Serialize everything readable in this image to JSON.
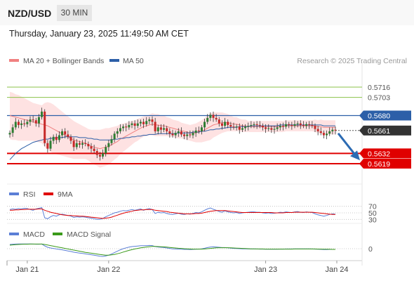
{
  "header": {
    "pair": "NZD/USD",
    "timeframe": "30 MIN",
    "timestamp": "Thursday, January 23, 2025 11:49:50 AM CET"
  },
  "colors": {
    "ma20": "#f08080",
    "bands": "#fdd8d8",
    "ma50": "#2c5fa8",
    "resistance_green": "#8bc34a",
    "pivot_blue": "#2c5fa8",
    "support_red": "#e00000",
    "current_price": "#333333",
    "rsi": "#5b7fd6",
    "rsi_9ma": "#e00000",
    "macd": "#5b7fd6",
    "macd_signal": "#3a9a1a",
    "arrow": "#2c6bb3"
  },
  "chart_data": [
    {
      "type": "candlestick",
      "panel": "price",
      "legend": [
        "MA 20 + Bollinger Bands",
        "MA 50"
      ],
      "source": "Research © 2025 Trading Central",
      "x_ticks": [
        "Jan 21",
        "Jan 22",
        "Jan 23",
        "Jan 24"
      ],
      "ylim": [
        0.5594,
        0.5741
      ],
      "current_price": 0.5661,
      "levels": [
        {
          "label": "0.5716",
          "value": 0.5716,
          "kind": "resistance"
        },
        {
          "label": "0.5703",
          "value": 0.5703,
          "kind": "resistance"
        },
        {
          "label": "0.5680",
          "value": 0.568,
          "kind": "pivot"
        },
        {
          "label": "0.5661",
          "value": 0.5661,
          "kind": "current"
        },
        {
          "label": "0.5632",
          "value": 0.5632,
          "kind": "support"
        },
        {
          "label": "0.5619",
          "value": 0.5619,
          "kind": "support"
        }
      ],
      "close": [
        0.5658,
        0.5665,
        0.5672,
        0.5668,
        0.567,
        0.5669,
        0.5672,
        0.5675,
        0.5674,
        0.567,
        0.5678,
        0.5685,
        0.5645,
        0.5638,
        0.5648,
        0.5653,
        0.5649,
        0.5655,
        0.566,
        0.5656,
        0.5653,
        0.5648,
        0.564,
        0.5645,
        0.5643,
        0.5645,
        0.5644,
        0.5641,
        0.5638,
        0.5635,
        0.563,
        0.5628,
        0.5632,
        0.564,
        0.5645,
        0.565,
        0.5657,
        0.566,
        0.5664,
        0.5666,
        0.5665,
        0.5668,
        0.567,
        0.5667,
        0.567,
        0.5672,
        0.5669,
        0.5673,
        0.5675,
        0.5672,
        0.566,
        0.5665,
        0.5662,
        0.5664,
        0.566,
        0.5657,
        0.5655,
        0.5658,
        0.566,
        0.5656,
        0.5654,
        0.5656,
        0.5655,
        0.5658,
        0.5661,
        0.566,
        0.5665,
        0.5672,
        0.5677,
        0.5681,
        0.5677,
        0.5675,
        0.567,
        0.5667,
        0.5672,
        0.5668,
        0.5666,
        0.5665,
        0.5666,
        0.5662,
        0.5664,
        0.5666,
        0.5667,
        0.5668,
        0.5669,
        0.5668,
        0.5667,
        0.5665,
        0.5663,
        0.5664,
        0.5662,
        0.5663,
        0.5665,
        0.5667,
        0.5666,
        0.5669,
        0.5668,
        0.5667,
        0.5669,
        0.567,
        0.5668,
        0.5667,
        0.5669,
        0.5668,
        0.5667,
        0.5663,
        0.566,
        0.5658,
        0.5655,
        0.5657,
        0.566,
        0.5662,
        0.5661
      ],
      "ma20": [
        0.568,
        0.5679,
        0.5678,
        0.5677,
        0.5676,
        0.5675,
        0.5674,
        0.5673,
        0.5672,
        0.5671,
        0.567,
        0.5669,
        0.5668,
        0.5667,
        0.5665,
        0.5663,
        0.5661,
        0.5659,
        0.5657,
        0.5655,
        0.5653,
        0.5651,
        0.5649,
        0.5648,
        0.5647,
        0.5646,
        0.5645,
        0.5643,
        0.5641,
        0.564,
        0.5639,
        0.5638,
        0.5639,
        0.564,
        0.5641,
        0.5643,
        0.5645,
        0.5647,
        0.565,
        0.5652,
        0.5654,
        0.5656,
        0.5658,
        0.566,
        0.5662,
        0.5664,
        0.5666,
        0.5667,
        0.5668,
        0.5669,
        0.5668,
        0.5668,
        0.5667,
        0.5667,
        0.5666,
        0.5665,
        0.5664,
        0.5663,
        0.5662,
        0.5661,
        0.566,
        0.5659,
        0.5658,
        0.5658,
        0.5658,
        0.5659,
        0.566,
        0.5662,
        0.5664,
        0.5666,
        0.5668,
        0.5669,
        0.567,
        0.5671,
        0.5671,
        0.5671,
        0.567,
        0.5669,
        0.5669,
        0.5668,
        0.5667,
        0.5667,
        0.5666,
        0.5666,
        0.5666,
        0.5666,
        0.5666,
        0.5666,
        0.5666,
        0.5666,
        0.5666,
        0.5666,
        0.5666,
        0.5666,
        0.5666,
        0.5667,
        0.5667,
        0.5667,
        0.5667,
        0.5667,
        0.5667,
        0.5667,
        0.5667,
        0.5667,
        0.5667,
        0.5667,
        0.5666,
        0.5666,
        0.5665,
        0.5665,
        0.5665,
        0.5665,
        0.5665
      ],
      "ma50": [
        0.5624,
        0.5628,
        0.5632,
        0.5635,
        0.5638,
        0.564,
        0.5642,
        0.5644,
        0.5646,
        0.5647,
        0.5648,
        0.5649,
        0.565,
        0.565,
        0.5651,
        0.5651,
        0.5652,
        0.5652,
        0.5652,
        0.5653,
        0.5653,
        0.5653,
        0.5653,
        0.5653,
        0.5652,
        0.5652,
        0.5652,
        0.5651,
        0.5651,
        0.565,
        0.565,
        0.5649,
        0.5649,
        0.5649,
        0.5649,
        0.5649,
        0.565,
        0.565,
        0.5651,
        0.5651,
        0.5652,
        0.5652,
        0.5653,
        0.5653,
        0.5654,
        0.5654,
        0.5655,
        0.5655,
        0.5656,
        0.5656,
        0.5656,
        0.5657,
        0.5657,
        0.5657,
        0.5657,
        0.5657,
        0.5657,
        0.5657,
        0.5658,
        0.5658,
        0.5658,
        0.5658,
        0.5658,
        0.5659,
        0.5659,
        0.5659,
        0.566,
        0.566,
        0.5661,
        0.5662,
        0.5662,
        0.5663,
        0.5663,
        0.5664,
        0.5664,
        0.5665,
        0.5665,
        0.5665,
        0.5665,
        0.5666,
        0.5666,
        0.5666,
        0.5666,
        0.5667,
        0.5667,
        0.5667,
        0.5667,
        0.5667,
        0.5667,
        0.5667,
        0.5667,
        0.5667,
        0.5667,
        0.5668,
        0.5668,
        0.5668,
        0.5668,
        0.5668,
        0.5668,
        0.5668,
        0.5668,
        0.5668,
        0.5668,
        0.5668,
        0.5668,
        0.5668,
        0.5668,
        0.5668,
        0.5667,
        0.5667,
        0.5667,
        0.5667,
        0.5667
      ],
      "band_width": [
        0.003,
        0.003,
        0.0029,
        0.0029,
        0.0028,
        0.0027,
        0.0026,
        0.0025,
        0.0024,
        0.0024,
        0.0024,
        0.0024,
        0.0028,
        0.003,
        0.0031,
        0.0031,
        0.003,
        0.0029,
        0.0028,
        0.0027,
        0.0026,
        0.0025,
        0.0024,
        0.0023,
        0.0022,
        0.0021,
        0.002,
        0.002,
        0.0021,
        0.0022,
        0.0023,
        0.0024,
        0.0024,
        0.0024,
        0.0023,
        0.0022,
        0.0021,
        0.002,
        0.0019,
        0.0018,
        0.0017,
        0.0016,
        0.0015,
        0.0014,
        0.0014,
        0.0013,
        0.0013,
        0.0013,
        0.0013,
        0.0014,
        0.0014,
        0.0014,
        0.0013,
        0.0013,
        0.0012,
        0.0012,
        0.0011,
        0.0011,
        0.0011,
        0.001,
        0.001,
        0.001,
        0.001,
        0.0011,
        0.0012,
        0.0013,
        0.0014,
        0.0015,
        0.0016,
        0.0017,
        0.0016,
        0.0015,
        0.0014,
        0.0013,
        0.0012,
        0.0011,
        0.001,
        0.0009,
        0.0009,
        0.0008,
        0.0008,
        0.0008,
        0.0007,
        0.0007,
        0.0007,
        0.0007,
        0.0007,
        0.0007,
        0.0007,
        0.0007,
        0.0007,
        0.0007,
        0.0007,
        0.0007,
        0.0007,
        0.0007,
        0.0007,
        0.0007,
        0.0007,
        0.0007,
        0.0007,
        0.0007,
        0.0007,
        0.0007,
        0.0007,
        0.0008,
        0.0008,
        0.0009,
        0.0009,
        0.0009,
        0.0009,
        0.0009,
        0.0009
      ]
    },
    {
      "type": "line",
      "panel": "rsi",
      "legend": [
        "RSI",
        "9MA"
      ],
      "y_ticks": [
        70,
        50,
        30
      ],
      "ylim": [
        20,
        80
      ],
      "rsi": [
        60,
        62,
        61,
        63,
        62,
        64,
        63,
        60,
        58,
        62,
        64,
        66,
        35,
        32,
        38,
        42,
        40,
        44,
        46,
        44,
        42,
        40,
        36,
        38,
        37,
        38,
        37,
        35,
        34,
        32,
        30,
        30,
        33,
        38,
        42,
        46,
        50,
        52,
        55,
        57,
        56,
        58,
        60,
        58,
        60,
        62,
        58,
        61,
        63,
        60,
        48,
        52,
        50,
        51,
        48,
        46,
        45,
        47,
        49,
        46,
        45,
        47,
        46,
        48,
        51,
        50,
        53,
        58,
        62,
        65,
        61,
        58,
        54,
        52,
        56,
        53,
        51,
        50,
        51,
        48,
        50,
        51,
        52,
        53,
        53,
        52,
        52,
        50,
        49,
        50,
        48,
        49,
        50,
        52,
        51,
        53,
        52,
        51,
        53,
        54,
        52,
        51,
        53,
        52,
        51,
        47,
        44,
        42,
        40,
        42,
        45,
        47,
        46
      ],
      "ma9": [
        58,
        58,
        59,
        59,
        60,
        60,
        61,
        61,
        61,
        61,
        62,
        62,
        58,
        55,
        52,
        50,
        48,
        46,
        44,
        43,
        42,
        42,
        41,
        41,
        40,
        40,
        39,
        38,
        37,
        36,
        35,
        34,
        33,
        34,
        35,
        37,
        40,
        43,
        46,
        49,
        51,
        53,
        55,
        57,
        58,
        59,
        59,
        60,
        60,
        60,
        58,
        57,
        56,
        55,
        54,
        52,
        51,
        50,
        49,
        48,
        47,
        47,
        47,
        47,
        48,
        48,
        49,
        51,
        53,
        55,
        56,
        57,
        57,
        57,
        57,
        56,
        55,
        54,
        53,
        52,
        51,
        51,
        51,
        51,
        51,
        51,
        51,
        51,
        51,
        51,
        51,
        50,
        50,
        50,
        50,
        51,
        51,
        51,
        52,
        52,
        52,
        52,
        52,
        52,
        52,
        51,
        50,
        49,
        48,
        47,
        46,
        45,
        45
      ]
    },
    {
      "type": "line",
      "panel": "macd",
      "legend": [
        "MACD",
        "MACD Signal"
      ],
      "y_ticks": [
        0
      ],
      "ylim": [
        -0.0008,
        0.0006
      ],
      "macd": [
        0.0003,
        0.00032,
        0.00033,
        0.00034,
        0.00034,
        0.00034,
        0.00034,
        0.00034,
        0.00033,
        0.00032,
        0.00032,
        0.00033,
        0.0002,
        0.0001,
        5e-05,
        2e-05,
        -2e-05,
        -5e-05,
        -8e-05,
        -0.00012,
        -0.00016,
        -0.0002,
        -0.00025,
        -0.00028,
        -0.00031,
        -0.00034,
        -0.00037,
        -0.0004,
        -0.00043,
        -0.00046,
        -0.0005,
        -0.00054,
        -0.00055,
        -0.00052,
        -0.00046,
        -0.00038,
        -0.00028,
        -0.00018,
        -8e-05,
        0.0,
        6e-05,
        0.00011,
        0.00015,
        0.00017,
        0.00019,
        0.00021,
        0.00021,
        0.00022,
        0.00023,
        0.00022,
        0.00015,
        0.00012,
        0.0001,
        8e-05,
        5e-05,
        2e-05,
        -1e-05,
        -2e-05,
        -3e-05,
        -4e-05,
        -5e-05,
        -5e-05,
        -6e-05,
        -5e-05,
        -4e-05,
        -3e-05,
        -1e-05,
        3e-05,
        8e-05,
        0.00012,
        0.00013,
        0.00012,
        0.0001,
        8e-05,
        8e-05,
        6e-05,
        4e-05,
        2e-05,
        1e-05,
        0.0,
        -1e-05,
        -1e-05,
        -2e-05,
        -2e-05,
        -2e-05,
        -2e-05,
        -3e-05,
        -3e-05,
        -4e-05,
        -4e-05,
        -4e-05,
        -4e-05,
        -4e-05,
        -3e-05,
        -3e-05,
        -2e-05,
        -2e-05,
        -2e-05,
        -1e-05,
        -1e-05,
        -1e-05,
        -1e-05,
        -1e-05,
        -1e-05,
        -2e-05,
        -3e-05,
        -4e-05,
        -5e-05,
        -6e-05,
        -6e-05,
        -5e-05,
        -5e-05,
        -5e-05
      ],
      "signal": [
        0.00025,
        0.00027,
        0.00029,
        0.0003,
        0.00031,
        0.00032,
        0.00032,
        0.00033,
        0.00033,
        0.00033,
        0.00033,
        0.00033,
        0.0003,
        0.00026,
        0.00022,
        0.00018,
        0.00014,
        0.0001,
        6e-05,
        2e-05,
        -2e-05,
        -6e-05,
        -0.0001,
        -0.00014,
        -0.00018,
        -0.00022,
        -0.00026,
        -0.00029,
        -0.00032,
        -0.00035,
        -0.00038,
        -0.00041,
        -0.00044,
        -0.00046,
        -0.00046,
        -0.00044,
        -0.00041,
        -0.00036,
        -0.00031,
        -0.00024,
        -0.00018,
        -0.00012,
        -7e-05,
        -2e-05,
        2e-05,
        6e-05,
        9e-05,
        0.00012,
        0.00014,
        0.00016,
        0.00016,
        0.00015,
        0.00014,
        0.00013,
        0.00011,
        9e-05,
        7e-05,
        5e-05,
        3e-05,
        2e-05,
        0.0,
        -1e-05,
        -2e-05,
        -3e-05,
        -3e-05,
        -3e-05,
        -3e-05,
        -2e-05,
        0.0,
        2e-05,
        4e-05,
        6e-05,
        7e-05,
        7e-05,
        7e-05,
        7e-05,
        6e-05,
        5e-05,
        4e-05,
        3e-05,
        2e-05,
        1e-05,
        0.0,
        -1e-05,
        -1e-05,
        -2e-05,
        -2e-05,
        -2e-05,
        -3e-05,
        -3e-05,
        -3e-05,
        -3e-05,
        -3e-05,
        -3e-05,
        -3e-05,
        -3e-05,
        -3e-05,
        -3e-05,
        -2e-05,
        -2e-05,
        -2e-05,
        -2e-05,
        -2e-05,
        -2e-05,
        -2e-05,
        -2e-05,
        -3e-05,
        -3e-05,
        -4e-05,
        -4e-05,
        -4e-05,
        -5e-05,
        -5e-05
      ]
    }
  ]
}
